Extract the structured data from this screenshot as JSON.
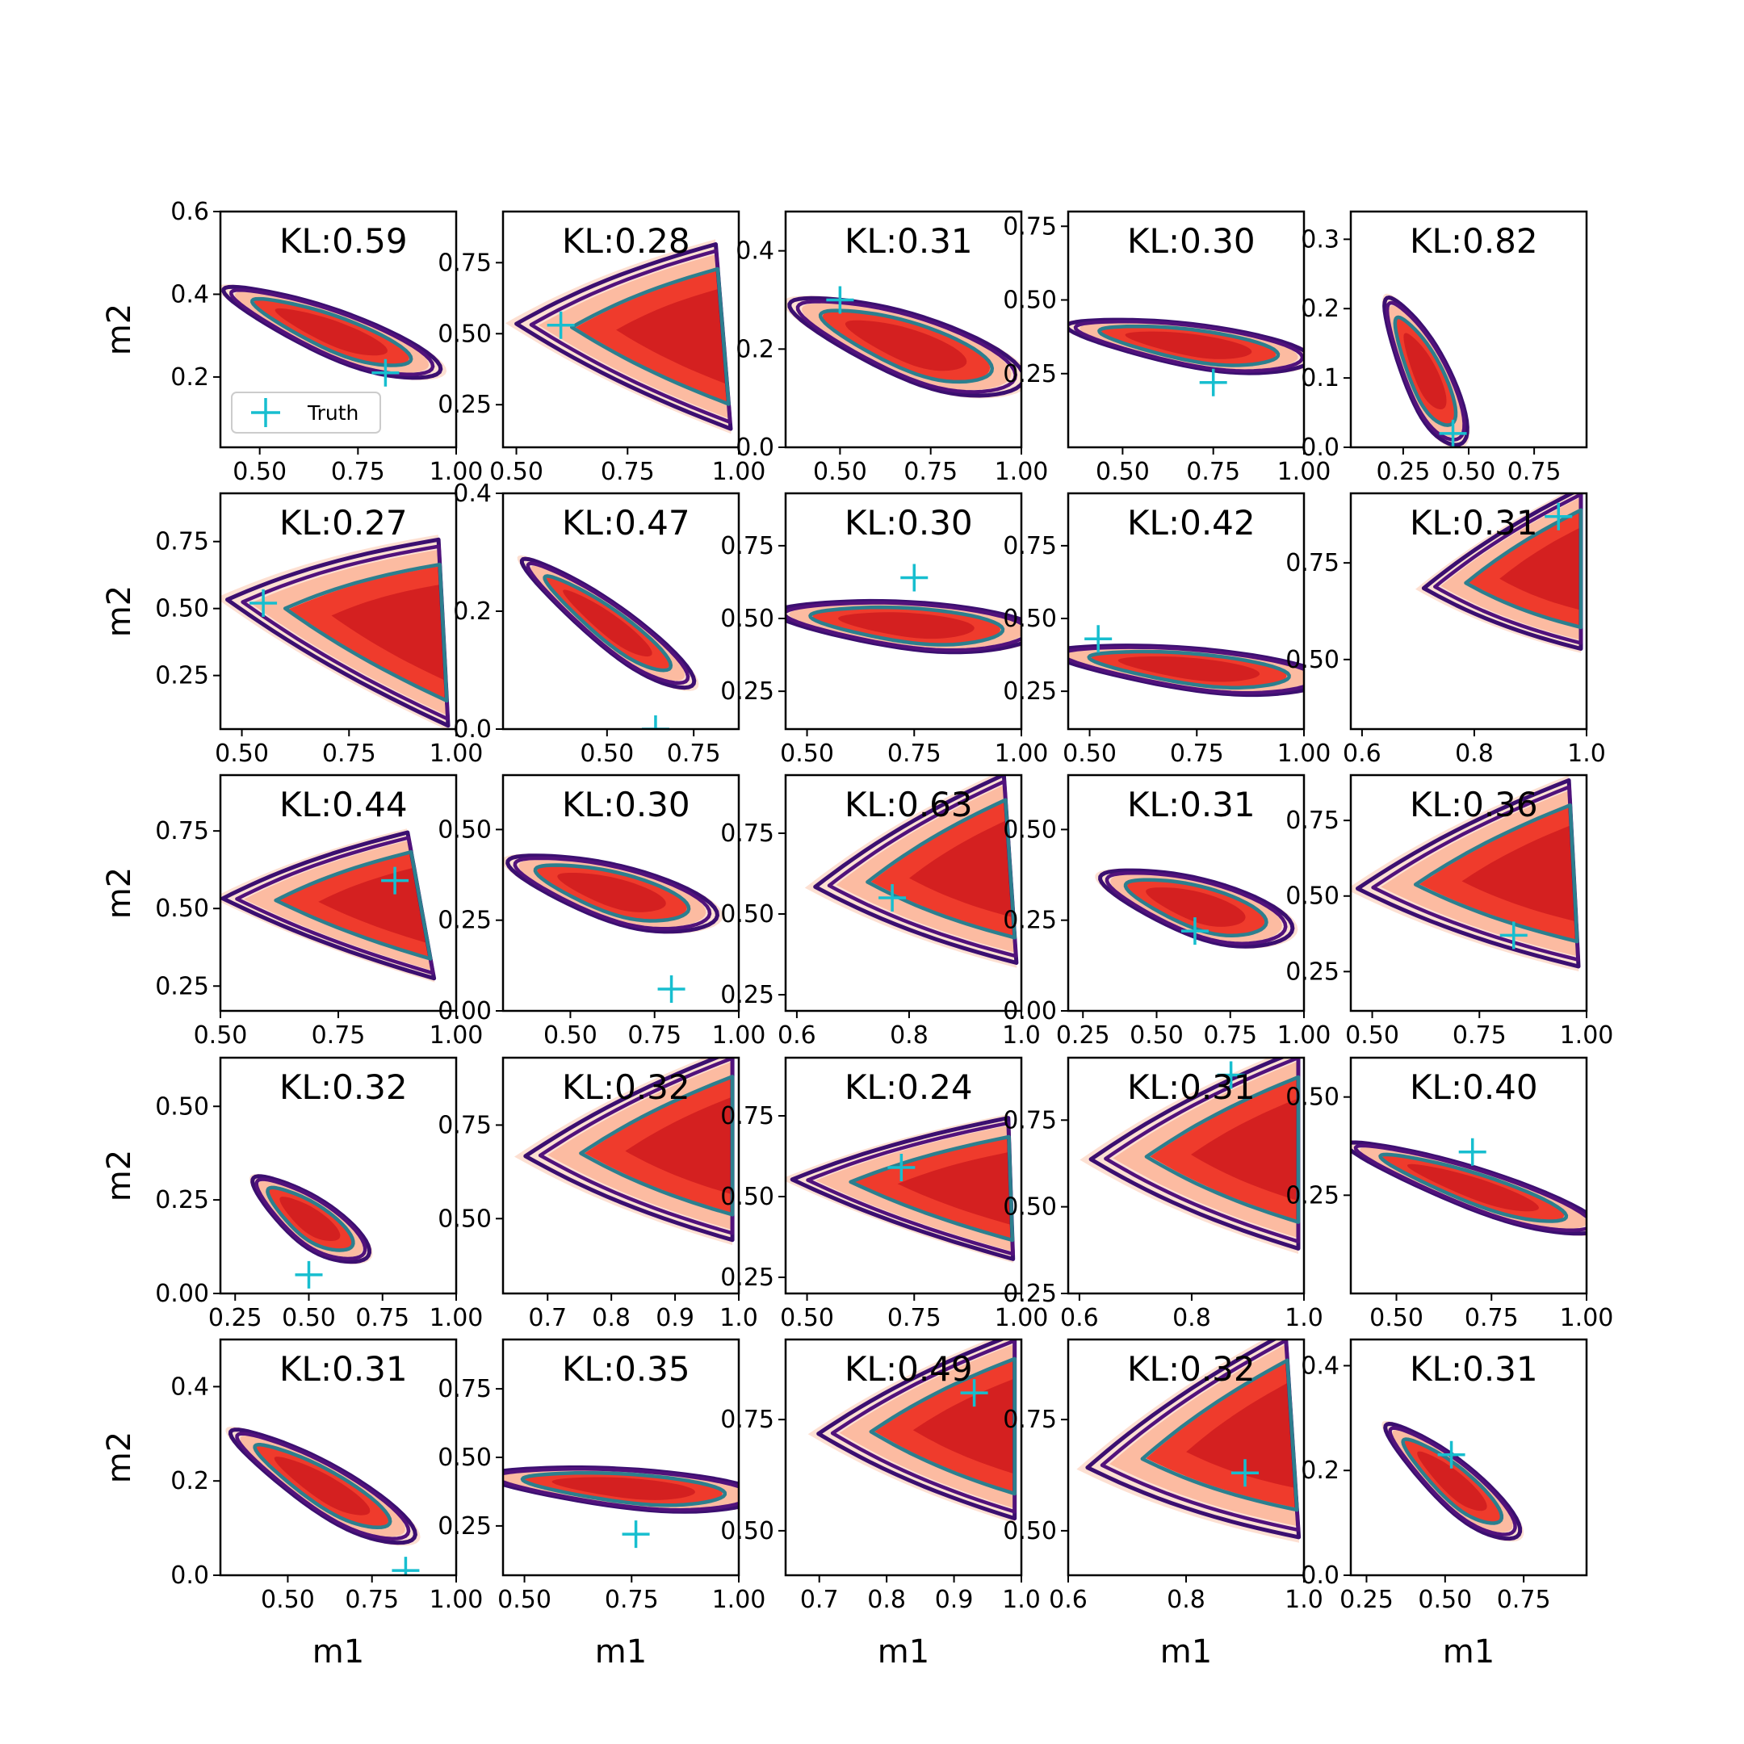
{
  "chart_data": {
    "type": "contour",
    "grid": {
      "rows": 5,
      "cols": 5
    },
    "xlabel": "m1",
    "ylabel": "m2",
    "legend": {
      "label": "Truth",
      "placement": "lower-left of first panel"
    },
    "colors": {
      "filled": [
        "#fde0d2",
        "#fcbba1",
        "#ef3b2c",
        "#d42020"
      ],
      "outer_contour": "#3b0f70",
      "mid_contour": "#51127c",
      "inner_contour": "#2c7f8e",
      "truth": "#17becf"
    },
    "panels": [
      {
        "kl": "KL:0.59",
        "xlim": [
          0.4,
          1.0
        ],
        "ylim": [
          0.03,
          0.6
        ],
        "xticks": [
          0.5,
          0.75,
          1.0
        ],
        "yticks": [
          0.2,
          0.4,
          0.6
        ],
        "shape": "neg",
        "cx": 0.68,
        "cy": 0.31,
        "ang": -37,
        "len": 0.58,
        "wid": 0.16,
        "truth": [
          0.82,
          0.21
        ]
      },
      {
        "kl": "KL:0.28",
        "xlim": [
          0.47,
          1.0
        ],
        "ylim": [
          0.1,
          0.93
        ],
        "xticks": [
          0.5,
          0.75,
          1.0
        ],
        "yticks": [
          0.25,
          0.5,
          0.75
        ],
        "shape": "fan",
        "apex": [
          0.55,
          0.53
        ],
        "up": [
          0.95,
          0.78
        ],
        "down": [
          0.98,
          0.2
        ],
        "truth": [
          0.6,
          0.53
        ]
      },
      {
        "kl": "KL:0.31",
        "xlim": [
          0.35,
          1.0
        ],
        "ylim": [
          0.0,
          0.48
        ],
        "xticks": [
          0.5,
          0.75,
          1.0
        ],
        "yticks": [
          0.0,
          0.2,
          0.4
        ],
        "shape": "neg",
        "cx": 0.68,
        "cy": 0.21,
        "ang": -28,
        "len": 0.62,
        "wid": 0.2,
        "truth": [
          0.5,
          0.3
        ]
      },
      {
        "kl": "KL:0.30",
        "xlim": [
          0.35,
          1.0
        ],
        "ylim": [
          0.0,
          0.8
        ],
        "xticks": [
          0.5,
          0.75,
          1.0
        ],
        "yticks": [
          0.25,
          0.5,
          0.75
        ],
        "shape": "neg",
        "cx": 0.68,
        "cy": 0.35,
        "ang": -22,
        "len": 0.62,
        "wid": 0.22,
        "truth": [
          0.75,
          0.22
        ]
      },
      {
        "kl": "KL:0.82",
        "xlim": [
          0.05,
          0.95
        ],
        "ylim": [
          0.0,
          0.34
        ],
        "xticks": [
          0.25,
          0.5,
          0.75
        ],
        "yticks": [
          0.0,
          0.1,
          0.2,
          0.3
        ],
        "shape": "neg",
        "cx": 0.33,
        "cy": 0.11,
        "ang": -55,
        "len": 0.42,
        "wid": 0.14,
        "truth": [
          0.44,
          0.02
        ]
      },
      {
        "kl": "KL:0.27",
        "xlim": [
          0.45,
          1.0
        ],
        "ylim": [
          0.05,
          0.93
        ],
        "xticks": [
          0.5,
          0.75,
          1.0
        ],
        "yticks": [
          0.25,
          0.5,
          0.75
        ],
        "shape": "fan",
        "apex": [
          0.52,
          0.52
        ],
        "up": [
          0.96,
          0.72
        ],
        "down": [
          0.98,
          0.1
        ],
        "truth": [
          0.55,
          0.52
        ]
      },
      {
        "kl": "KL:0.47",
        "xlim": [
          0.2,
          0.88
        ],
        "ylim": [
          0.0,
          0.4
        ],
        "xticks": [
          0.5,
          0.75
        ],
        "yticks": [
          0.0,
          0.2,
          0.4
        ],
        "shape": "neg",
        "cx": 0.5,
        "cy": 0.18,
        "ang": -40,
        "len": 0.55,
        "wid": 0.11,
        "truth": [
          0.64,
          0.0
        ]
      },
      {
        "kl": "KL:0.30",
        "xlim": [
          0.45,
          1.0
        ],
        "ylim": [
          0.12,
          0.93
        ],
        "xticks": [
          0.5,
          0.75,
          1.0
        ],
        "yticks": [
          0.25,
          0.5,
          0.75
        ],
        "shape": "neg",
        "cx": 0.73,
        "cy": 0.48,
        "ang": -18,
        "len": 0.55,
        "wid": 0.25,
        "truth": [
          0.75,
          0.64
        ]
      },
      {
        "kl": "KL:0.42",
        "xlim": [
          0.45,
          1.0
        ],
        "ylim": [
          0.12,
          0.93
        ],
        "xticks": [
          0.5,
          0.75,
          1.0
        ],
        "yticks": [
          0.25,
          0.5,
          0.75
        ],
        "shape": "neg",
        "cx": 0.73,
        "cy": 0.33,
        "ang": -20,
        "len": 0.58,
        "wid": 0.22,
        "truth": [
          0.52,
          0.43
        ]
      },
      {
        "kl": "KL:0.31",
        "xlim": [
          0.58,
          1.0
        ],
        "ylim": [
          0.32,
          0.93
        ],
        "xticks": [
          0.6,
          0.8,
          1.0
        ],
        "yticks": [
          0.5,
          0.75
        ],
        "shape": "fan",
        "apex": [
          0.74,
          0.69
        ],
        "up": [
          0.99,
          0.92
        ],
        "down": [
          0.99,
          0.55
        ],
        "truth": [
          0.95,
          0.87
        ]
      },
      {
        "kl": "KL:0.44",
        "xlim": [
          0.5,
          1.0
        ],
        "ylim": [
          0.17,
          0.93
        ],
        "xticks": [
          0.5,
          0.75,
          1.0
        ],
        "yticks": [
          0.25,
          0.5,
          0.75
        ],
        "shape": "fan",
        "apex": [
          0.55,
          0.53
        ],
        "up": [
          0.9,
          0.72
        ],
        "down": [
          0.95,
          0.3
        ],
        "truth": [
          0.87,
          0.59
        ]
      },
      {
        "kl": "KL:0.30",
        "xlim": [
          0.3,
          1.0
        ],
        "ylim": [
          0.0,
          0.65
        ],
        "xticks": [
          0.5,
          0.75,
          1.0
        ],
        "yticks": [
          0.0,
          0.25,
          0.5
        ],
        "shape": "neg",
        "cx": 0.62,
        "cy": 0.33,
        "ang": -30,
        "len": 0.6,
        "wid": 0.23,
        "truth": [
          0.8,
          0.06
        ]
      },
      {
        "kl": "KL:0.63",
        "xlim": [
          0.58,
          1.0
        ],
        "ylim": [
          0.2,
          0.93
        ],
        "xticks": [
          0.6,
          0.8,
          1.0
        ],
        "yticks": [
          0.25,
          0.5,
          0.75
        ],
        "shape": "fan",
        "apex": [
          0.67,
          0.59
        ],
        "up": [
          0.97,
          0.9
        ],
        "down": [
          0.99,
          0.38
        ],
        "truth": [
          0.77,
          0.55
        ]
      },
      {
        "kl": "KL:0.31",
        "xlim": [
          0.2,
          1.0
        ],
        "ylim": [
          0.0,
          0.65
        ],
        "xticks": [
          0.25,
          0.5,
          0.75,
          1.0
        ],
        "yticks": [
          0.0,
          0.25,
          0.5
        ],
        "shape": "neg",
        "cx": 0.63,
        "cy": 0.29,
        "ang": -28,
        "len": 0.62,
        "wid": 0.24,
        "truth": [
          0.63,
          0.22
        ]
      },
      {
        "kl": "KL:0.36",
        "xlim": [
          0.45,
          1.0
        ],
        "ylim": [
          0.12,
          0.9
        ],
        "xticks": [
          0.5,
          0.75,
          1.0
        ],
        "yticks": [
          0.25,
          0.5,
          0.75
        ],
        "shape": "fan",
        "apex": [
          0.52,
          0.53
        ],
        "up": [
          0.96,
          0.85
        ],
        "down": [
          0.98,
          0.3
        ],
        "truth": [
          0.83,
          0.37
        ]
      },
      {
        "kl": "KL:0.32",
        "xlim": [
          0.2,
          1.0
        ],
        "ylim": [
          0.0,
          0.63
        ],
        "xticks": [
          0.25,
          0.5,
          0.75,
          1.0
        ],
        "yticks": [
          0.0,
          0.25,
          0.5
        ],
        "shape": "neg",
        "cx": 0.5,
        "cy": 0.2,
        "ang": -50,
        "len": 0.48,
        "wid": 0.17,
        "truth": [
          0.5,
          0.05
        ]
      },
      {
        "kl": "KL:0.32",
        "xlim": [
          0.63,
          1.0
        ],
        "ylim": [
          0.3,
          0.93
        ],
        "xticks": [
          0.7,
          0.8,
          0.9,
          1.0
        ],
        "yticks": [
          0.5,
          0.75
        ],
        "shape": "fan",
        "apex": [
          0.7,
          0.67
        ],
        "up": [
          0.99,
          0.92
        ],
        "down": [
          0.99,
          0.47
        ],
        "truth": null
      },
      {
        "kl": "KL:0.24",
        "xlim": [
          0.45,
          1.0
        ],
        "ylim": [
          0.2,
          0.93
        ],
        "xticks": [
          0.5,
          0.75,
          1.0
        ],
        "yticks": [
          0.25,
          0.5,
          0.75
        ],
        "shape": "fan",
        "apex": [
          0.52,
          0.55
        ],
        "up": [
          0.97,
          0.72
        ],
        "down": [
          0.98,
          0.33
        ],
        "truth": [
          0.72,
          0.59
        ]
      },
      {
        "kl": "KL:0.31",
        "xlim": [
          0.58,
          1.0
        ],
        "ylim": [
          0.25,
          0.93
        ],
        "xticks": [
          0.6,
          0.8,
          1.0
        ],
        "yticks": [
          0.25,
          0.5,
          0.75
        ],
        "shape": "fan",
        "apex": [
          0.66,
          0.64
        ],
        "up": [
          0.99,
          0.92
        ],
        "down": [
          0.99,
          0.41
        ],
        "truth": [
          0.87,
          0.88
        ]
      },
      {
        "kl": "KL:0.40",
        "xlim": [
          0.38,
          1.0
        ],
        "ylim": [
          0.0,
          0.6
        ],
        "xticks": [
          0.5,
          0.75,
          1.0
        ],
        "yticks": [
          0.25,
          0.5
        ],
        "shape": "neg",
        "cx": 0.7,
        "cy": 0.27,
        "ang": -33,
        "len": 0.68,
        "wid": 0.15,
        "truth": [
          0.7,
          0.36
        ]
      },
      {
        "kl": "KL:0.31",
        "xlim": [
          0.3,
          1.0
        ],
        "ylim": [
          0.0,
          0.5
        ],
        "xticks": [
          0.5,
          0.75,
          1.0
        ],
        "yticks": [
          0.0,
          0.2,
          0.4
        ],
        "shape": "neg",
        "cx": 0.6,
        "cy": 0.19,
        "ang": -40,
        "len": 0.6,
        "wid": 0.15,
        "truth": [
          0.85,
          0.01
        ]
      },
      {
        "kl": "KL:0.35",
        "xlim": [
          0.45,
          1.0
        ],
        "ylim": [
          0.07,
          0.93
        ],
        "xticks": [
          0.5,
          0.75,
          1.0
        ],
        "yticks": [
          0.25,
          0.5,
          0.75
        ],
        "shape": "neg",
        "cx": 0.73,
        "cy": 0.39,
        "ang": -17,
        "len": 0.58,
        "wid": 0.22,
        "truth": [
          0.76,
          0.22
        ]
      },
      {
        "kl": "KL:0.49",
        "xlim": [
          0.65,
          1.0
        ],
        "ylim": [
          0.4,
          0.93
        ],
        "xticks": [
          0.7,
          0.8,
          0.9,
          1.0
        ],
        "yticks": [
          0.5,
          0.75
        ],
        "shape": "fan",
        "apex": [
          0.73,
          0.72
        ],
        "up": [
          0.99,
          0.92
        ],
        "down": [
          0.99,
          0.55
        ],
        "truth": [
          0.93,
          0.81
        ]
      },
      {
        "kl": "KL:0.32",
        "xlim": [
          0.6,
          1.0
        ],
        "ylim": [
          0.4,
          0.93
        ],
        "xticks": [
          0.6,
          0.8,
          1.0
        ],
        "yticks": [
          0.5,
          0.75
        ],
        "shape": "fan",
        "apex": [
          0.67,
          0.65
        ],
        "up": [
          0.97,
          0.92
        ],
        "down": [
          0.99,
          0.51
        ],
        "truth": [
          0.9,
          0.63
        ]
      },
      {
        "kl": "KL:0.31",
        "xlim": [
          0.2,
          0.95
        ],
        "ylim": [
          0.0,
          0.45
        ],
        "xticks": [
          0.25,
          0.5,
          0.75
        ],
        "yticks": [
          0.0,
          0.2,
          0.4
        ],
        "shape": "neg",
        "cx": 0.52,
        "cy": 0.18,
        "ang": -45,
        "len": 0.5,
        "wid": 0.13,
        "truth": [
          0.52,
          0.23
        ]
      }
    ]
  }
}
